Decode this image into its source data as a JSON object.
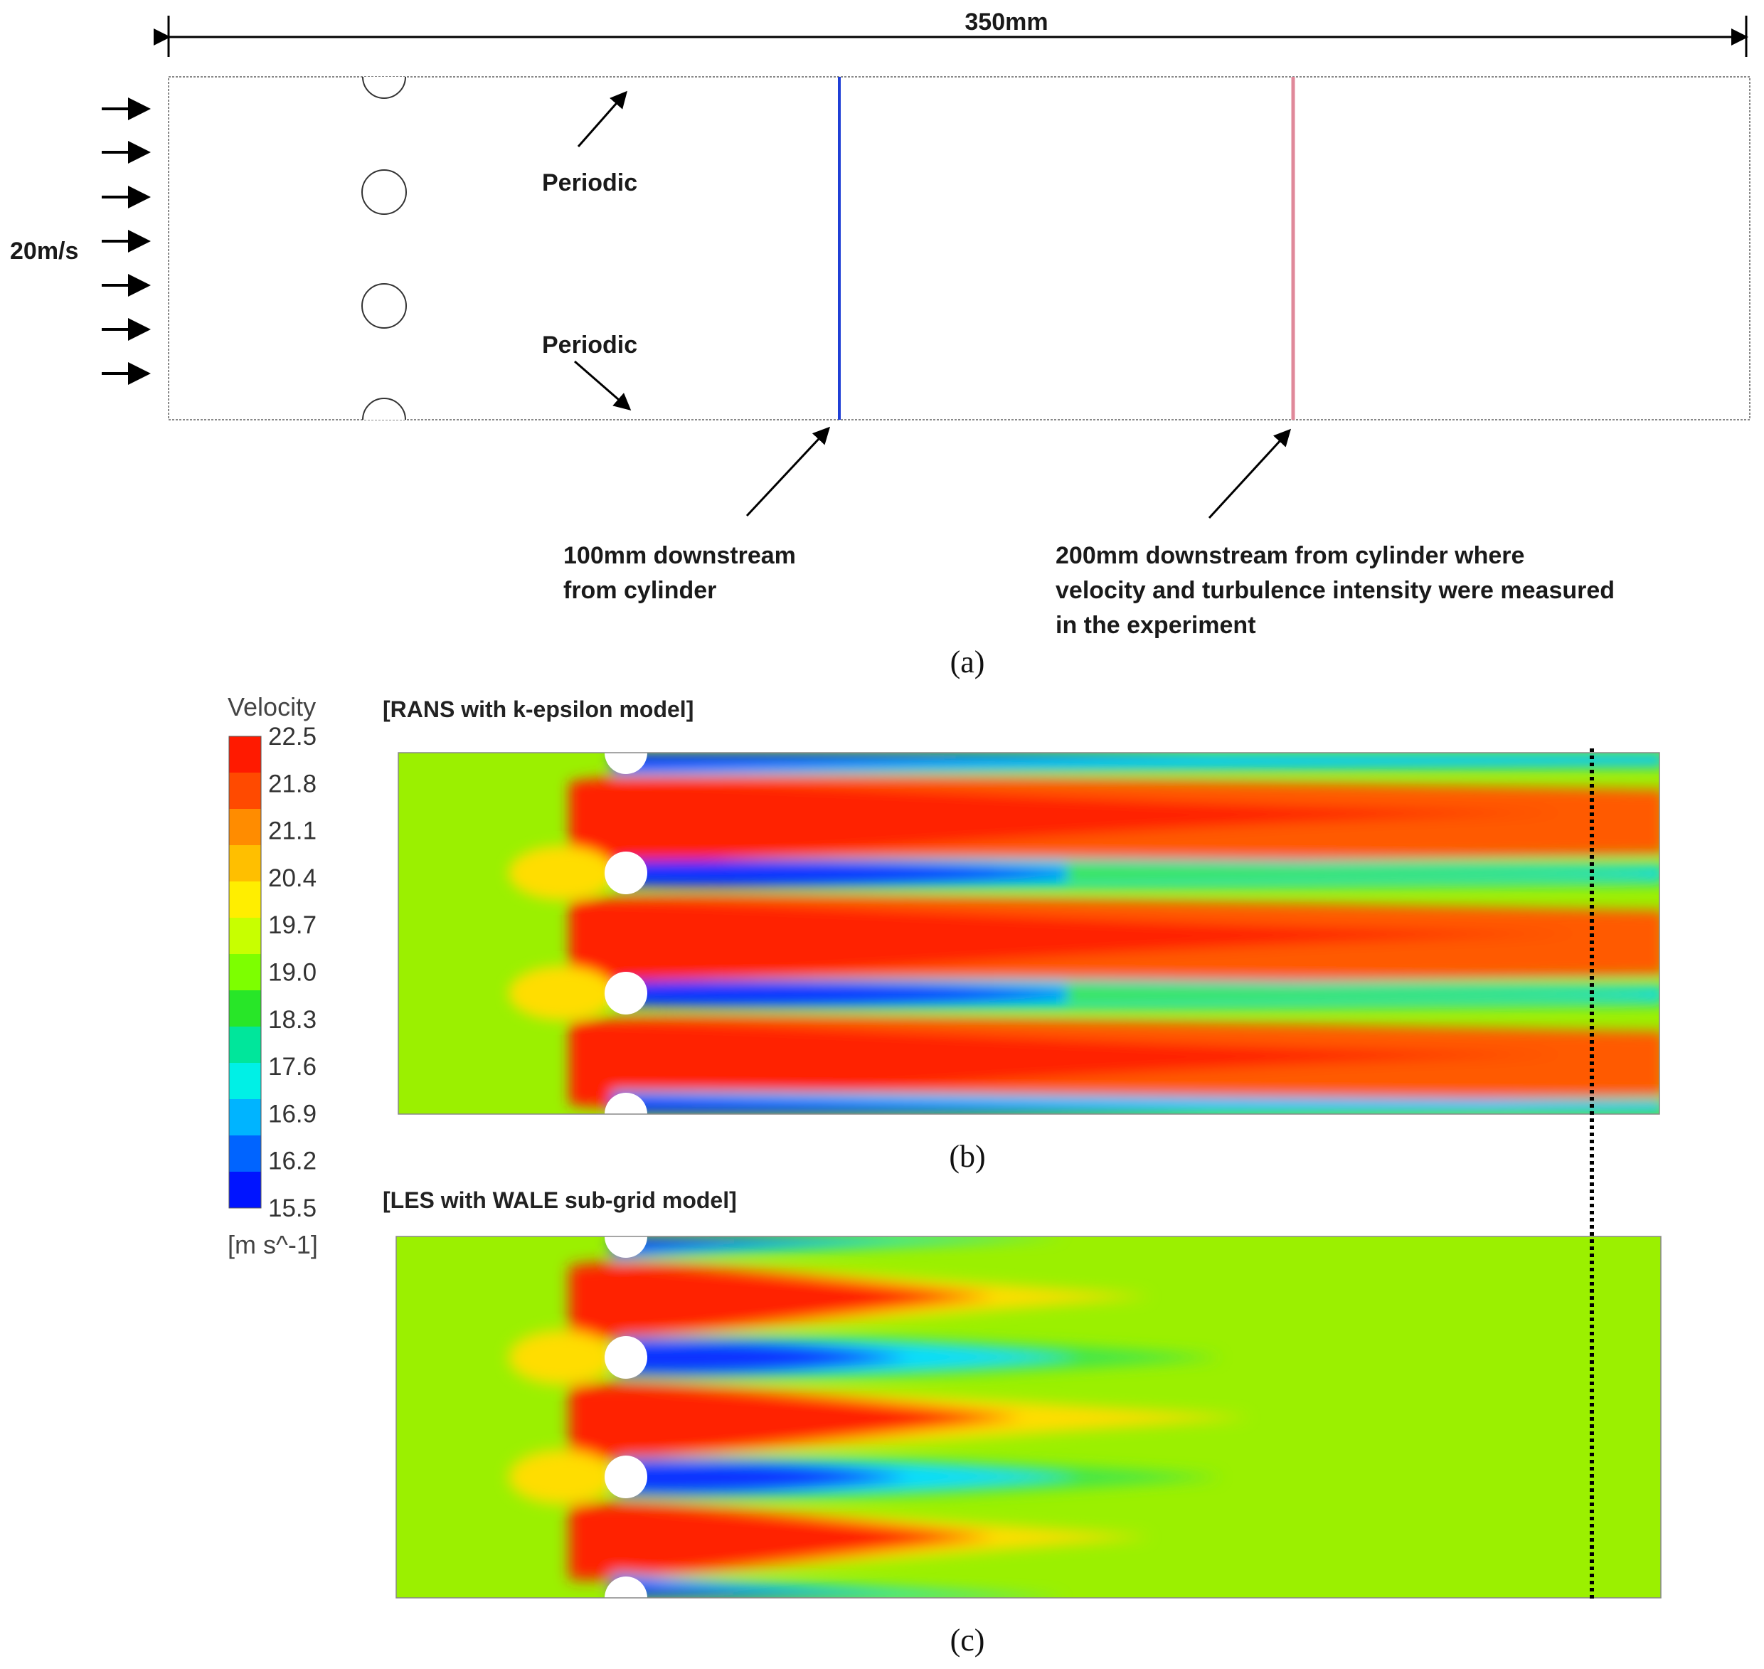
{
  "panel_a": {
    "width_label": "350mm",
    "inlet_label": "20m/s",
    "periodic_top": "Periodic",
    "periodic_bottom": "Periodic",
    "line_100_text": [
      "100mm downstream",
      "from cylinder"
    ],
    "line_200_text": [
      "200mm downstream from cylinder where",
      "velocity and turbulence intensity were measured",
      "in the experiment"
    ],
    "caption": "(a)",
    "colors": {
      "line_100": "#1f3fd6",
      "line_200": "#e0899a",
      "outline": "#888888"
    }
  },
  "legend": {
    "title": "Velocity",
    "unit": "[m s^-1]",
    "ticks": [
      "22.5",
      "21.8",
      "21.1",
      "20.4",
      "19.7",
      "19.0",
      "18.3",
      "17.6",
      "16.9",
      "16.2",
      "15.5"
    ],
    "colors": [
      "#ff1a00",
      "#ff4a00",
      "#ff8c00",
      "#ffbf00",
      "#ffee00",
      "#c8ff00",
      "#7dff00",
      "#28e628",
      "#00e69b",
      "#00f0e6",
      "#00b4ff",
      "#0064ff",
      "#0014ff"
    ]
  },
  "panel_b": {
    "title": "[RANS with k-epsilon model]",
    "caption": "(b)",
    "colors": {
      "free": "#9bf000",
      "jet": "#ff2200",
      "jet_far": "#ff6a00",
      "wake": "#1030ff",
      "wake_mid": "#00c8ff",
      "wake_far": "#3ce650"
    }
  },
  "panel_c": {
    "title": "[LES with WALE sub-grid model]",
    "caption": "(c)",
    "colors": {
      "free": "#9bf000",
      "jet": "#ff2200",
      "jet_mid": "#ffcc00",
      "wake": "#1030ff",
      "wake_mid": "#00dcff",
      "wake_far": "#3ce650"
    }
  }
}
